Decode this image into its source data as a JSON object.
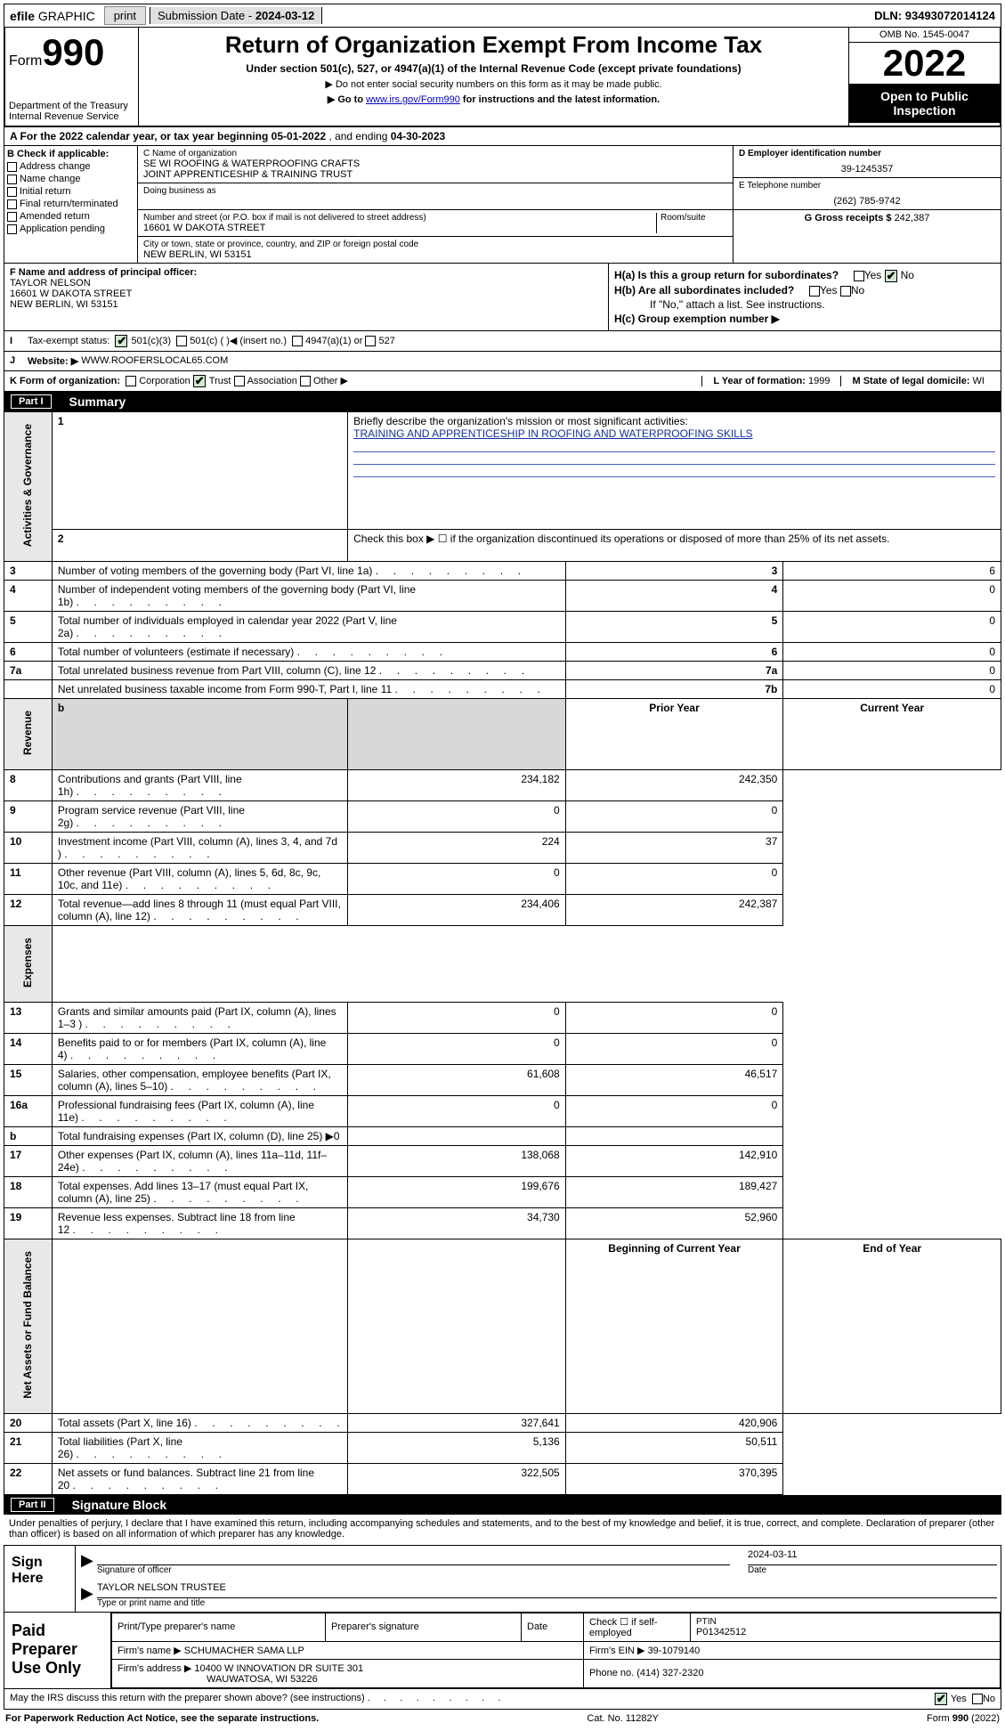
{
  "top_bar": {
    "efile_prefix": "efile",
    "efile_text": "GRAPHIC",
    "print": "print",
    "submission_label": "Submission Date - ",
    "submission_date": "2024-03-12",
    "dln_label": "DLN: ",
    "dln": "93493072014124"
  },
  "header": {
    "form_label": "Form",
    "form_num": "990",
    "dept": "Department of the Treasury\nInternal Revenue Service",
    "title": "Return of Organization Exempt From Income Tax",
    "subtitle": "Under section 501(c), 527, or 4947(a)(1) of the Internal Revenue Code (except private foundations)",
    "note1": "▶ Do not enter social security numbers on this form as it may be made public.",
    "note2_pre": "▶ Go to ",
    "note2_link": "www.irs.gov/Form990",
    "note2_post": " for instructions and the latest information.",
    "omb": "OMB No. 1545-0047",
    "year": "2022",
    "open_public": "Open to Public Inspection"
  },
  "period": {
    "text_a": "A For the 2022 calendar year, or tax year beginning ",
    "begin": "05-01-2022",
    "text_b": " , and ending ",
    "end": "04-30-2023"
  },
  "col_b": {
    "label": "B Check if applicable:",
    "opts": [
      "Address change",
      "Name change",
      "Initial return",
      "Final return/terminated",
      "Amended return",
      "Application pending"
    ]
  },
  "col_c": {
    "name_label": "C Name of organization",
    "name1": "SE WI ROOFING & WATERPROOFING CRAFTS",
    "name2": "JOINT APPRENTICESHIP & TRAINING TRUST",
    "dba_label": "Doing business as",
    "addr_label": "Number and street (or P.O. box if mail is not delivered to street address)",
    "room_label": "Room/suite",
    "addr": "16601 W DAKOTA STREET",
    "city_label": "City or town, state or province, country, and ZIP or foreign postal code",
    "city": "NEW BERLIN, WI  53151"
  },
  "col_d": {
    "ein_label": "D Employer identification number",
    "ein": "39-1245357",
    "phone_label": "E Telephone number",
    "phone": "(262) 785-9742",
    "gross_label": "G Gross receipts $ ",
    "gross": "242,387"
  },
  "row_f": {
    "label": "F Name and address of principal officer:",
    "name": "TAYLOR NELSON",
    "addr1": "16601 W DAKOTA STREET",
    "addr2": "NEW BERLIN, WI  53151",
    "ha": "H(a)  Is this a group return for subordinates?",
    "hb": "H(b)  Are all subordinates included?",
    "hb_note": "If \"No,\" attach a list. See instructions.",
    "hc": "H(c)  Group exemption number ▶",
    "yes": "Yes",
    "no": "No"
  },
  "row_i": {
    "label": "Tax-exempt status:",
    "opt1": "501(c)(3)",
    "opt2_a": "501(c) (   )",
    "opt2_b": "◀ (insert no.)",
    "opt3": "4947(a)(1) or",
    "opt4": "527"
  },
  "row_j": {
    "label": "Website: ▶",
    "val": "WWW.ROOFERSLOCAL65.COM"
  },
  "row_k": {
    "label": "K Form of organization:",
    "o1": "Corporation",
    "o2": "Trust",
    "o3": "Association",
    "o4": "Other ▶",
    "l_label": "L Year of formation: ",
    "l_val": "1999",
    "m_label": "M State of legal domicile: ",
    "m_val": "WI"
  },
  "part1": {
    "num": "Part I",
    "title": "Summary",
    "side_ag": "Activities & Governance",
    "side_rev": "Revenue",
    "side_exp": "Expenses",
    "side_na": "Net Assets or Fund Balances",
    "line1_label": "Briefly describe the organization's mission or most significant activities:",
    "line1_val": "TRAINING AND APPRENTICESHIP IN ROOFING AND WATERPROOFING SKILLS",
    "line2": "Check this box ▶ ☐  if the organization discontinued its operations or disposed of more than 25% of its net assets.",
    "rows_ag": [
      {
        "n": "3",
        "t": "Number of voting members of the governing body (Part VI, line 1a)",
        "b": "3",
        "v": "6"
      },
      {
        "n": "4",
        "t": "Number of independent voting members of the governing body (Part VI, line 1b)",
        "b": "4",
        "v": "0"
      },
      {
        "n": "5",
        "t": "Total number of individuals employed in calendar year 2022 (Part V, line 2a)",
        "b": "5",
        "v": "0"
      },
      {
        "n": "6",
        "t": "Total number of volunteers (estimate if necessary)",
        "b": "6",
        "v": "0"
      },
      {
        "n": "7a",
        "t": "Total unrelated business revenue from Part VIII, column (C), line 12",
        "b": "7a",
        "v": "0"
      },
      {
        "n": "",
        "t": "Net unrelated business taxable income from Form 990-T, Part I, line 11",
        "b": "7b",
        "v": "0"
      }
    ],
    "col_hdr_prior": "Prior Year",
    "col_hdr_curr": "Current Year",
    "rows_rev": [
      {
        "n": "8",
        "t": "Contributions and grants (Part VIII, line 1h)",
        "p": "234,182",
        "c": "242,350"
      },
      {
        "n": "9",
        "t": "Program service revenue (Part VIII, line 2g)",
        "p": "0",
        "c": "0"
      },
      {
        "n": "10",
        "t": "Investment income (Part VIII, column (A), lines 3, 4, and 7d )",
        "p": "224",
        "c": "37"
      },
      {
        "n": "11",
        "t": "Other revenue (Part VIII, column (A), lines 5, 6d, 8c, 9c, 10c, and 11e)",
        "p": "0",
        "c": "0"
      },
      {
        "n": "12",
        "t": "Total revenue—add lines 8 through 11 (must equal Part VIII, column (A), line 12)",
        "p": "234,406",
        "c": "242,387"
      }
    ],
    "rows_exp": [
      {
        "n": "13",
        "t": "Grants and similar amounts paid (Part IX, column (A), lines 1–3 )",
        "p": "0",
        "c": "0"
      },
      {
        "n": "14",
        "t": "Benefits paid to or for members (Part IX, column (A), line 4)",
        "p": "0",
        "c": "0"
      },
      {
        "n": "15",
        "t": "Salaries, other compensation, employee benefits (Part IX, column (A), lines 5–10)",
        "p": "61,608",
        "c": "46,517"
      },
      {
        "n": "16a",
        "t": "Professional fundraising fees (Part IX, column (A), line 11e)",
        "p": "0",
        "c": "0"
      },
      {
        "n": "b",
        "t": "Total fundraising expenses (Part IX, column (D), line 25) ▶0",
        "p": "",
        "c": "",
        "shade": true
      },
      {
        "n": "17",
        "t": "Other expenses (Part IX, column (A), lines 11a–11d, 11f–24e)",
        "p": "138,068",
        "c": "142,910"
      },
      {
        "n": "18",
        "t": "Total expenses. Add lines 13–17 (must equal Part IX, column (A), line 25)",
        "p": "199,676",
        "c": "189,427"
      },
      {
        "n": "19",
        "t": "Revenue less expenses. Subtract line 18 from line 12",
        "p": "34,730",
        "c": "52,960"
      }
    ],
    "col_hdr_beg": "Beginning of Current Year",
    "col_hdr_end": "End of Year",
    "rows_na": [
      {
        "n": "20",
        "t": "Total assets (Part X, line 16)",
        "p": "327,641",
        "c": "420,906"
      },
      {
        "n": "21",
        "t": "Total liabilities (Part X, line 26)",
        "p": "5,136",
        "c": "50,511"
      },
      {
        "n": "22",
        "t": "Net assets or fund balances. Subtract line 21 from line 20",
        "p": "322,505",
        "c": "370,395"
      }
    ]
  },
  "part2": {
    "num": "Part II",
    "title": "Signature Block",
    "decl": "Under penalties of perjury, I declare that I have examined this return, including accompanying schedules and statements, and to the best of my knowledge and belief, it is true, correct, and complete. Declaration of preparer (other than officer) is based on all information of which preparer has any knowledge.",
    "sign_here": "Sign Here",
    "sig_officer": "Signature of officer",
    "sig_date_val": "2024-03-11",
    "sig_date": "Date",
    "sig_name": "TAYLOR NELSON  TRUSTEE",
    "sig_name_lbl": "Type or print name and title",
    "paid": "Paid Preparer Use Only",
    "prep_name_lbl": "Print/Type preparer's name",
    "prep_sig_lbl": "Preparer's signature",
    "prep_date_lbl": "Date",
    "prep_check": "Check ☐ if self-employed",
    "ptin_lbl": "PTIN",
    "ptin": "P01342512",
    "firm_name_lbl": "Firm's name    ▶ ",
    "firm_name": "SCHUMACHER SAMA LLP",
    "firm_ein_lbl": "Firm's EIN ▶ ",
    "firm_ein": "39-1079140",
    "firm_addr_lbl": "Firm's address ▶ ",
    "firm_addr1": "10400 W INNOVATION DR SUITE 301",
    "firm_addr2": "WAUWATOSA, WI  53226",
    "firm_phone_lbl": "Phone no. ",
    "firm_phone": "(414) 327-2320",
    "discuss": "May the IRS discuss this return with the preparer shown above? (see instructions)",
    "yes": "Yes",
    "no": "No"
  },
  "footer": {
    "pra": "For Paperwork Reduction Act Notice, see the separate instructions.",
    "cat": "Cat. No. 11282Y",
    "form": "Form 990 (2022)"
  }
}
